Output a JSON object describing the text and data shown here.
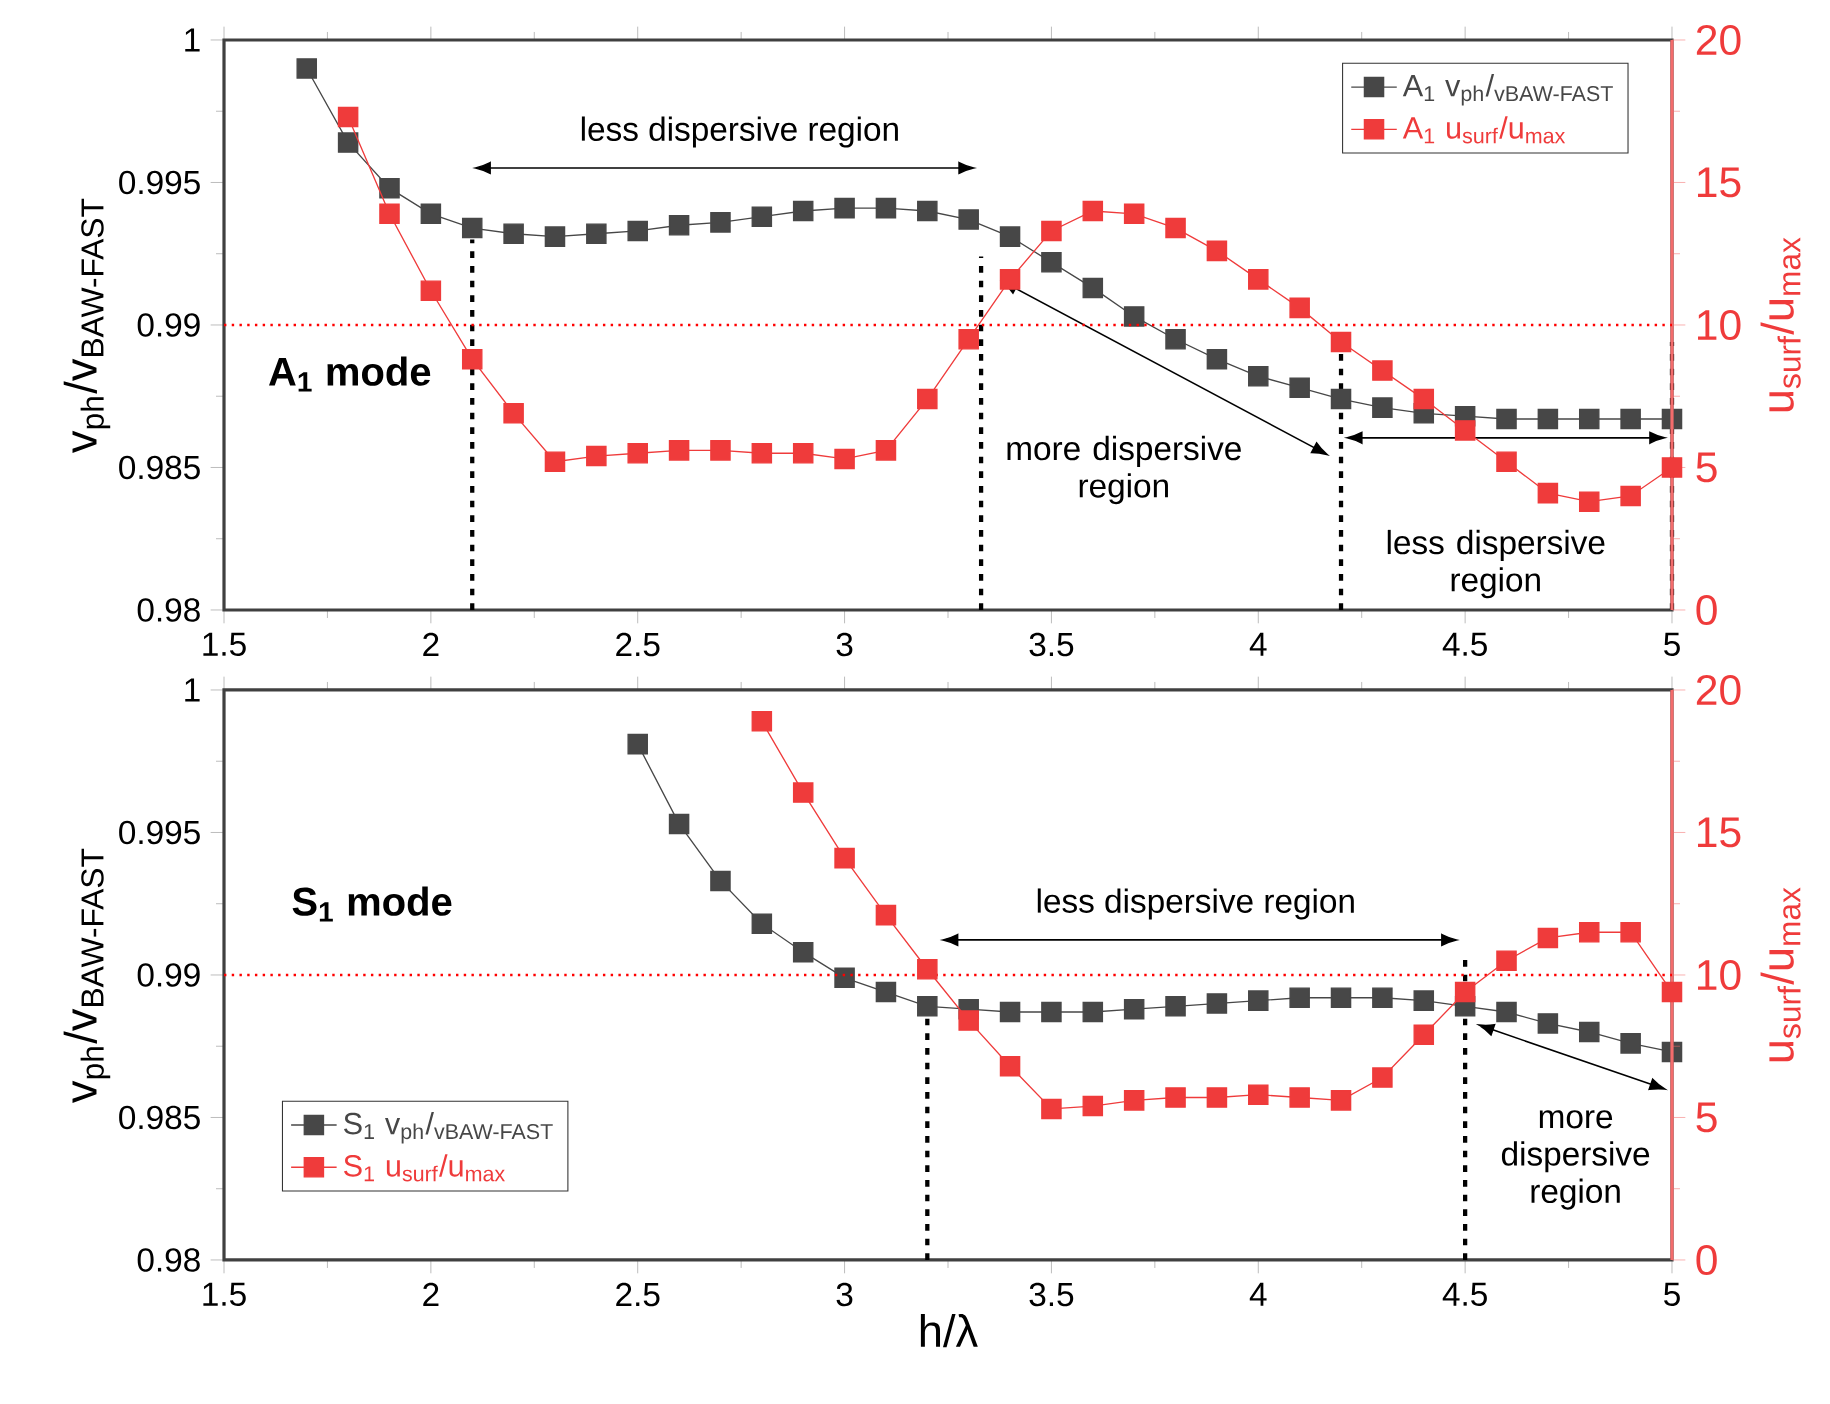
{
  "chart_data": [
    {
      "type": "line",
      "ylabel": "v$_{ph}$/v$_{BAW-FAST}$",
      "y2label": "u$_{surf}$/u$_{max}$",
      "xlim": [
        1.5,
        5
      ],
      "xticks": [
        1.5,
        2,
        2.5,
        3,
        3.5,
        4,
        4.5,
        5
      ],
      "ylim": [
        0.98,
        1
      ],
      "yticks": [
        0.98,
        0.985,
        0.99,
        0.995,
        1
      ],
      "y2lim": [
        0,
        20
      ],
      "y2ticks": [
        0,
        5,
        10,
        15,
        20
      ],
      "legend": "top right",
      "marker": "square",
      "line_style": "solid",
      "series": [
        {
          "name": "A$_{1}$ v$_{ph}$/$_{vBAW-FAST}$",
          "color": "#474747",
          "x": [
            1.7,
            1.8,
            1.9,
            2.0,
            2.1,
            2.2,
            2.3,
            2.4,
            2.5,
            2.6,
            2.7,
            2.8,
            2.9,
            3.0,
            3.1,
            3.2,
            3.3,
            3.4,
            3.5,
            3.6,
            3.7,
            3.8,
            3.9,
            4.0,
            4.1,
            4.2,
            4.3,
            4.4,
            4.5,
            4.6,
            4.7,
            4.8,
            4.9,
            5.0
          ],
          "values": [
            0.999,
            0.9964,
            0.9948,
            0.9939,
            0.9934,
            0.9932,
            0.9931,
            0.9932,
            0.9933,
            0.9935,
            0.9936,
            0.9938,
            0.994,
            0.9941,
            0.9941,
            0.994,
            0.9937,
            0.9931,
            0.9922,
            0.9913,
            0.9903,
            0.9895,
            0.9888,
            0.9882,
            0.9878,
            0.9874,
            0.9871,
            0.9869,
            0.9868,
            0.9867,
            0.9867,
            0.9867,
            0.9867,
            0.9867
          ]
        },
        {
          "name": "A$_{1}$  u$_{surf}$/u$_{max}$",
          "color": "#ef3b3b",
          "axis": "y2",
          "x": [
            1.8,
            1.9,
            2.0,
            2.1,
            2.2,
            2.3,
            2.4,
            2.5,
            2.6,
            2.7,
            2.8,
            2.9,
            3.0,
            3.1,
            3.2,
            3.3,
            3.4,
            3.5,
            3.6,
            3.7,
            3.8,
            3.9,
            4.0,
            4.1,
            4.2,
            4.3,
            4.4,
            4.5,
            4.6,
            4.7,
            4.8,
            4.9,
            5.0
          ],
          "values": [
            17.3,
            13.9,
            11.2,
            8.8,
            6.9,
            5.2,
            5.4,
            5.5,
            5.6,
            5.6,
            5.5,
            5.5,
            5.3,
            5.6,
            7.4,
            9.5,
            11.6,
            13.3,
            14.0,
            13.9,
            13.4,
            12.6,
            11.6,
            10.6,
            9.4,
            8.4,
            7.4,
            6.3,
            5.2,
            4.1,
            3.8,
            4.0,
            5.0
          ]
        }
      ],
      "ref_lines": [
        {
          "axis": "y2",
          "value": 10,
          "color": "#ff0000",
          "line_style": "dotted"
        },
        {
          "axis": "x",
          "value": 2.1,
          "color": "#000000",
          "line_style": "dotted"
        },
        {
          "axis": "x",
          "value": 3.33,
          "color": "#000000",
          "line_style": "dotted"
        },
        {
          "axis": "x",
          "value": 4.2,
          "color": "#000000",
          "line_style": "dotted"
        },
        {
          "axis": "x",
          "value": 5.0,
          "color": "#000000",
          "line_style": "dotted"
        }
      ],
      "annotations": [
        "less dispersive region",
        "A$_{1}$ mode",
        "more dispersive region",
        "less dispersive region"
      ]
    },
    {
      "type": "line",
      "xlabel": "h/λ",
      "ylabel": "v$_{ph}$/v$_{BAW-FAST}$",
      "y2label": "u$_{surf}$/u$_{max}$",
      "xlim": [
        1.5,
        5
      ],
      "xticks": [
        1.5,
        2,
        2.5,
        3,
        3.5,
        4,
        4.5,
        5
      ],
      "ylim": [
        0.98,
        1
      ],
      "yticks": [
        0.98,
        0.985,
        0.99,
        0.995,
        1
      ],
      "y2lim": [
        0,
        20
      ],
      "y2ticks": [
        0,
        5,
        10,
        15,
        20
      ],
      "legend": "bottom left",
      "marker": "square",
      "line_style": "solid",
      "series": [
        {
          "name": "S$_{1}$ v$_{ph}$/$_{vBAW-FAST}$",
          "color": "#474747",
          "x": [
            2.5,
            2.6,
            2.7,
            2.8,
            2.9,
            3.0,
            3.1,
            3.2,
            3.3,
            3.4,
            3.5,
            3.6,
            3.7,
            3.8,
            3.9,
            4.0,
            4.1,
            4.2,
            4.3,
            4.4,
            4.5,
            4.6,
            4.7,
            4.8,
            4.9,
            5.0
          ],
          "values": [
            0.9981,
            0.9953,
            0.9933,
            0.9918,
            0.9908,
            0.9899,
            0.9894,
            0.9889,
            0.9888,
            0.9887,
            0.9887,
            0.9887,
            0.9888,
            0.9889,
            0.989,
            0.9891,
            0.9892,
            0.9892,
            0.9892,
            0.9891,
            0.9889,
            0.9887,
            0.9883,
            0.988,
            0.9876,
            0.9873
          ]
        },
        {
          "name": "S$_{1}$  u$_{surf}$/u$_{max}$",
          "color": "#ef3b3b",
          "axis": "y2",
          "x": [
            2.8,
            2.9,
            3.0,
            3.1,
            3.2,
            3.3,
            3.4,
            3.5,
            3.6,
            3.7,
            3.8,
            3.9,
            4.0,
            4.1,
            4.2,
            4.3,
            4.4,
            4.5,
            4.6,
            4.7,
            4.8,
            4.9,
            5.0
          ],
          "values": [
            18.9,
            16.4,
            14.1,
            12.1,
            10.2,
            8.4,
            6.8,
            5.3,
            5.4,
            5.6,
            5.7,
            5.7,
            5.8,
            5.7,
            5.6,
            6.4,
            7.9,
            9.4,
            10.5,
            11.3,
            11.5,
            11.5,
            9.4
          ]
        }
      ],
      "ref_lines": [
        {
          "axis": "y2",
          "value": 10,
          "color": "#ff0000",
          "line_style": "dotted"
        },
        {
          "axis": "x",
          "value": 3.2,
          "color": "#000000",
          "line_style": "dotted"
        },
        {
          "axis": "x",
          "value": 4.5,
          "color": "#000000",
          "line_style": "dotted"
        }
      ],
      "annotations": [
        "S$_{1}$ mode",
        "less dispersive region",
        "more dispersive region"
      ]
    }
  ]
}
